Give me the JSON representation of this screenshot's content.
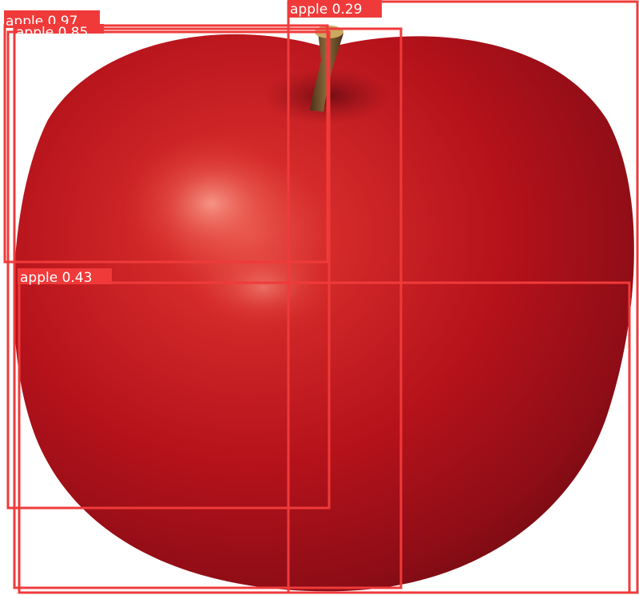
{
  "image": {
    "subject": "red apple on white background",
    "colors": {
      "background": "#ffffff",
      "apple_light": "#e23a30",
      "apple_mid": "#b5121b",
      "apple_dark": "#6e0a12",
      "stem": "#6b4a2a",
      "box": "#f03a3a",
      "label_text": "#ffffff"
    }
  },
  "detections": [
    {
      "label": "apple 0.97",
      "class": "apple",
      "confidence": 0.97
    },
    {
      "label": "apple 0.85",
      "class": "apple",
      "confidence": 0.85
    },
    {
      "label": "apple 0.29",
      "class": "apple",
      "confidence": 0.29
    },
    {
      "label": "apple 0.43",
      "class": "apple",
      "confidence": 0.43
    },
    {
      "label": "",
      "class": "apple",
      "confidence": null
    }
  ]
}
